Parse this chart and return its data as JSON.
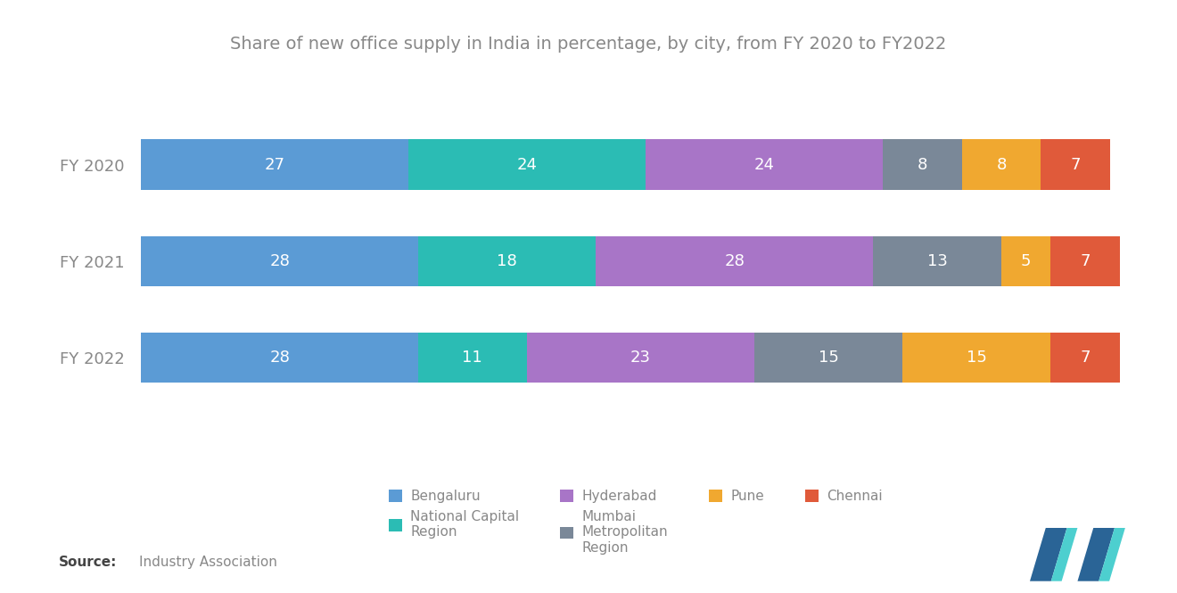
{
  "title": "Share of new office supply in India in percentage, by city, from FY 2020 to FY2022",
  "years": [
    "FY 2020",
    "FY 2021",
    "FY 2022"
  ],
  "categories": [
    "Bengaluru",
    "National Capital\nRegion",
    "Hyderabad",
    "Mumbai\nMetropolitan\nRegion",
    "Pune",
    "Chennai"
  ],
  "legend_order": [
    0,
    1,
    2,
    3,
    4,
    5
  ],
  "values": [
    [
      27,
      24,
      24,
      8,
      8,
      7
    ],
    [
      28,
      18,
      28,
      13,
      5,
      7
    ],
    [
      28,
      11,
      23,
      15,
      15,
      7
    ]
  ],
  "colors": [
    "#5B9BD5",
    "#2BBCB4",
    "#A875C7",
    "#7A8898",
    "#F0A830",
    "#E05A3A"
  ],
  "background_color": "#FFFFFF",
  "title_color": "#888888",
  "label_color": "#888888",
  "bar_height": 0.52,
  "text_color": "#FFFFFF",
  "logo_color1": "#2A6496",
  "logo_color2": "#3DBFBF"
}
